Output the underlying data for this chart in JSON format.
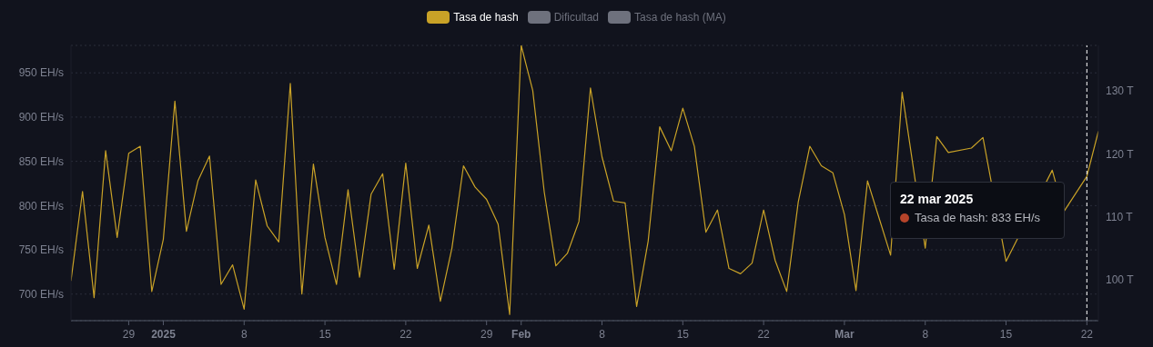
{
  "chart_data": {
    "type": "line",
    "x": [
      "2024-12-24",
      "2024-12-25",
      "2024-12-26",
      "2024-12-27",
      "2024-12-28",
      "2024-12-29",
      "2024-12-30",
      "2024-12-31",
      "2025-01-01",
      "2025-01-02",
      "2025-01-03",
      "2025-01-04",
      "2025-01-05",
      "2025-01-06",
      "2025-01-07",
      "2025-01-08",
      "2025-01-09",
      "2025-01-10",
      "2025-01-11",
      "2025-01-12",
      "2025-01-13",
      "2025-01-14",
      "2025-01-15",
      "2025-01-16",
      "2025-01-17",
      "2025-01-18",
      "2025-01-19",
      "2025-01-20",
      "2025-01-21",
      "2025-01-22",
      "2025-01-23",
      "2025-01-24",
      "2025-01-25",
      "2025-01-26",
      "2025-01-27",
      "2025-01-28",
      "2025-01-29",
      "2025-01-30",
      "2025-01-31",
      "2025-02-01",
      "2025-02-02",
      "2025-02-03",
      "2025-02-04",
      "2025-02-05",
      "2025-02-06",
      "2025-02-07",
      "2025-02-08",
      "2025-02-09",
      "2025-02-10",
      "2025-02-11",
      "2025-02-12",
      "2025-02-13",
      "2025-02-14",
      "2025-02-15",
      "2025-02-16",
      "2025-02-17",
      "2025-02-18",
      "2025-02-19",
      "2025-02-20",
      "2025-02-21",
      "2025-02-22",
      "2025-02-23",
      "2025-02-24",
      "2025-02-25",
      "2025-02-26",
      "2025-02-27",
      "2025-02-28",
      "2025-03-01",
      "2025-03-02",
      "2025-03-03",
      "2025-03-04",
      "2025-03-05",
      "2025-03-06",
      "2025-03-07",
      "2025-03-08",
      "2025-03-09",
      "2025-03-10",
      "2025-03-11",
      "2025-03-12",
      "2025-03-13",
      "2025-03-14",
      "2025-03-15",
      "2025-03-16",
      "2025-03-17",
      "2025-03-18",
      "2025-03-19",
      "2025-03-20",
      "2025-03-21",
      "2025-03-22",
      "2025-03-23"
    ],
    "series": [
      {
        "name": "Tasa de hash",
        "color": "#c9a227",
        "values": [
          715,
          816,
          696,
          862,
          764,
          859,
          867,
          703,
          762,
          918,
          771,
          828,
          856,
          711,
          733,
          683,
          829,
          777,
          759,
          938,
          700,
          847,
          764,
          711,
          818,
          719,
          813,
          836,
          728,
          848,
          729,
          778,
          692,
          752,
          845,
          821,
          807,
          779,
          677,
          981,
          930,
          815,
          732,
          746,
          782,
          933,
          855,
          805,
          803,
          686,
          760,
          889,
          862,
          910,
          867,
          770,
          795,
          729,
          723,
          735,
          795,
          738,
          703,
          804,
          867,
          845,
          837,
          790,
          704,
          828,
          786,
          744,
          928,
          null,
          752,
          878,
          860,
          null,
          865,
          877,
          null,
          737,
          null,
          null,
          null,
          840,
          793,
          813,
          833,
          884
        ]
      },
      {
        "name": "Dificultad",
        "color": "#6e717d",
        "values": [
          null,
          null,
          null,
          null,
          null,
          null,
          null,
          null,
          null,
          null,
          null,
          null,
          null,
          null,
          null,
          null,
          null,
          null,
          null,
          null,
          null,
          null,
          null,
          null,
          null,
          null,
          null,
          null,
          null,
          null,
          null,
          null,
          null,
          null,
          null,
          null,
          null,
          null,
          null,
          null,
          null,
          null,
          null,
          null,
          null,
          null,
          null,
          null,
          null,
          null,
          null,
          null,
          null,
          null,
          null,
          null,
          null,
          null,
          null,
          null,
          null,
          null,
          null,
          null,
          null,
          null,
          null,
          null,
          null,
          null,
          null,
          null,
          null,
          null,
          null,
          null,
          null,
          null,
          null,
          null,
          null,
          null,
          null,
          null,
          null,
          null,
          null,
          null,
          null,
          null
        ]
      },
      {
        "name": "Tasa de hash (MA)",
        "color": "#6e717d",
        "values": [
          null,
          null,
          null,
          null,
          null,
          null,
          null,
          null,
          null,
          null,
          null,
          null,
          null,
          null,
          null,
          null,
          null,
          null,
          null,
          null,
          null,
          null,
          null,
          null,
          null,
          null,
          null,
          null,
          null,
          null,
          null,
          null,
          null,
          null,
          null,
          null,
          null,
          null,
          null,
          null,
          null,
          null,
          null,
          null,
          null,
          null,
          null,
          null,
          null,
          null,
          null,
          null,
          null,
          null,
          null,
          null,
          null,
          null,
          null,
          null,
          null,
          null,
          null,
          null,
          null,
          null,
          null,
          null,
          null,
          null,
          null,
          null,
          null,
          null,
          null,
          null,
          null,
          null,
          null,
          null,
          null,
          null,
          null,
          null,
          null,
          null,
          null,
          null,
          null,
          null
        ]
      }
    ],
    "ylim": [
      670,
      981
    ],
    "yticks": [
      {
        "value": 700,
        "label": "700 EH/s"
      },
      {
        "value": 750,
        "label": "750 EH/s"
      },
      {
        "value": 800,
        "label": "800 EH/s"
      },
      {
        "value": 850,
        "label": "850 EH/s"
      },
      {
        "value": 900,
        "label": "900 EH/s"
      },
      {
        "value": 950,
        "label": "950 EH/s"
      }
    ],
    "y2lim": [
      93.5,
      137.2
    ],
    "y2ticks": [
      {
        "value": 100,
        "label": "100 T"
      },
      {
        "value": 110,
        "label": "110 T"
      },
      {
        "value": 120,
        "label": "120 T"
      },
      {
        "value": 130,
        "label": "130 T"
      }
    ],
    "xlim": [
      "2024-12-24",
      "2025-03-23"
    ],
    "xticks": [
      {
        "value": "2024-12-29",
        "label": "29"
      },
      {
        "value": "2025-01-01",
        "label": "2025"
      },
      {
        "value": "2025-01-08",
        "label": "8"
      },
      {
        "value": "2025-01-15",
        "label": "15"
      },
      {
        "value": "2025-01-22",
        "label": "22"
      },
      {
        "value": "2025-01-29",
        "label": "29"
      },
      {
        "value": "2025-02-01",
        "label": "Feb"
      },
      {
        "value": "2025-02-08",
        "label": "8"
      },
      {
        "value": "2025-02-15",
        "label": "15"
      },
      {
        "value": "2025-02-22",
        "label": "22"
      },
      {
        "value": "2025-03-01",
        "label": "Mar"
      },
      {
        "value": "2025-03-08",
        "label": "8"
      },
      {
        "value": "2025-03-15",
        "label": "15"
      },
      {
        "value": "2025-03-22",
        "label": "22"
      }
    ],
    "ref_lines": [
      {
        "axis": "x",
        "value": "2025-03-22",
        "color": "#ffffff",
        "line_style": "dashed"
      }
    ],
    "annotations": [
      "22 mar 2025",
      "Tasa de hash: 833 EH/s"
    ],
    "grid": "y",
    "legend": "top",
    "marker": "none",
    "line_style": "solid"
  }
}
